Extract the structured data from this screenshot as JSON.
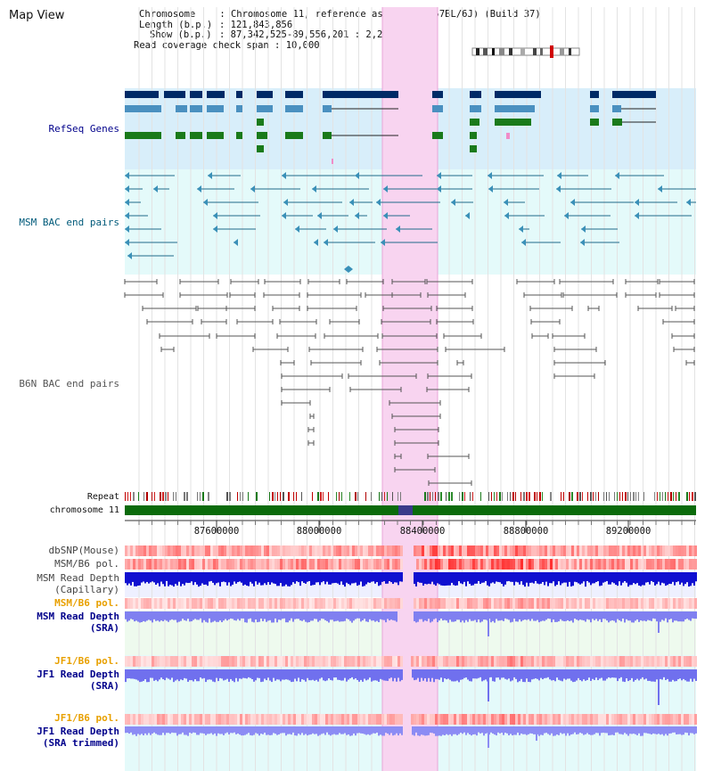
{
  "page": {
    "title": "Map View"
  },
  "info": {
    "chromosome_key": "Chromosome",
    "chromosome_value": "Chromosome 11, reference assembly (C57BL/6J) (Build 37)",
    "length_key": "Length (b.p.)",
    "length_value": "121,843,856",
    "show_key": "Show (b.p.)",
    "show_value": "87,342,525-89,556,201 : 2,213,677 bp",
    "span_key": "Read coverage check span",
    "span_value": "10,000"
  },
  "tracks": {
    "refseq": "RefSeq Genes",
    "msm_bac": "MSM BAC end pairs",
    "b6n_bac": "B6N BAC end pairs",
    "repeat": "Repeat",
    "chromosome": "chromosome 11",
    "dbsnp": "dbSNP(Mouse)",
    "msm_b6_pol_1": "MSM/B6 pol.",
    "msm_depth_cap_1": "MSM Read Depth",
    "msm_depth_cap_2": "(Capillary)",
    "msm_b6_pol_2": "MSM/B6 pol.",
    "msm_depth_sra_1": "MSM Read Depth",
    "msm_depth_sra_2": "(SRA)",
    "jf1_b6_pol_1": "JF1/B6 pol.",
    "jf1_depth_sra_1": "JF1 Read Depth",
    "jf1_depth_sra_2": "(SRA)",
    "jf1_b6_pol_2": "JF1/B6 pol.",
    "jf1_depth_trim_1": "JF1 Read Depth",
    "jf1_depth_trim_2": "(SRA trimmed)"
  },
  "axis": {
    "ticks": [
      "87600000",
      "88000000",
      "88400000",
      "88800000",
      "89200000"
    ]
  },
  "colors": {
    "highlight": "#f8d4f0",
    "refseq_bg": "#d8eefa",
    "msm_bg": "#e4fafa",
    "dark_blue": "#002a66",
    "mid_blue": "#4a90c0",
    "green": "#1a7a1a",
    "chrom_green": "#0b6b0b",
    "label_blue": "#00008b",
    "label_orange": "#e8a000",
    "label_gray": "#333333"
  }
}
